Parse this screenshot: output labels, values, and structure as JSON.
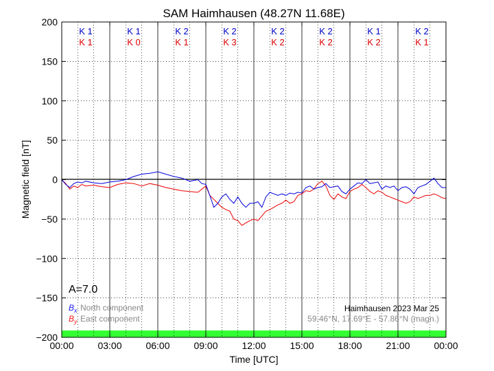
{
  "chart_data": {
    "type": "line",
    "title": "SAM Haimhausen (48.27N 11.68E)",
    "xlabel": "Time [UTC]",
    "ylabel": "Magnetic field [nT]",
    "xlim": [
      0,
      24
    ],
    "ylim": [
      -200,
      200
    ],
    "x_ticks": [
      0,
      3,
      6,
      9,
      12,
      15,
      18,
      21,
      24
    ],
    "x_tick_labels": [
      "00:00",
      "03:00",
      "06:00",
      "09:00",
      "12:00",
      "15:00",
      "18:00",
      "21:00",
      "00:00"
    ],
    "y_ticks": [
      200,
      150,
      100,
      50,
      0,
      -50,
      -100,
      -150,
      -200
    ],
    "y_tick_labels": [
      "200",
      "150",
      "100",
      "50",
      "0",
      "−50",
      "−100",
      "−150",
      "−200"
    ],
    "grid": true,
    "k_indices": {
      "blue": [
        "K 1",
        "K 1",
        "K 2",
        "K 2",
        "K 2",
        "K 2",
        "K 1",
        "K 2"
      ],
      "red": [
        "K 1",
        "K 0",
        "K 1",
        "K 3",
        "K 2",
        "K 2",
        "K 2",
        "K 1"
      ]
    },
    "a_index": "A=7.0",
    "station_info": "Haimhausen 2023 Mar 25",
    "coords_info": "59.46°N, 17.69°E - 57.86°N (magn.)",
    "legend": [
      {
        "symbol": "B",
        "sub": "x",
        "text": "North component",
        "color": "#1a1aff"
      },
      {
        "symbol": "B",
        "sub": "y",
        "text": "East component",
        "color": "#ff1a1a"
      }
    ],
    "colors": {
      "north": "#0000dd",
      "east": "#ee0000",
      "band": "#33ff33",
      "legend_text": "#888888"
    },
    "series": [
      {
        "name": "North component",
        "x": [
          0,
          0.25,
          0.5,
          0.75,
          1,
          1.25,
          1.5,
          2,
          2.5,
          3,
          3.5,
          4,
          4.5,
          5,
          5.5,
          6,
          6.5,
          7,
          7.5,
          8,
          8.5,
          8.75,
          9,
          9.25,
          9.5,
          9.75,
          10,
          10.25,
          10.5,
          10.75,
          11,
          11.25,
          11.5,
          11.75,
          12,
          12.25,
          12.5,
          12.75,
          13,
          13.25,
          13.5,
          13.75,
          14,
          14.25,
          14.5,
          14.75,
          15,
          15.25,
          15.5,
          15.75,
          16,
          16.25,
          16.5,
          16.75,
          17,
          17.25,
          17.5,
          17.75,
          18,
          18.25,
          18.5,
          18.75,
          19,
          19.25,
          19.5,
          19.75,
          20,
          20.25,
          20.5,
          20.75,
          21,
          21.25,
          21.5,
          21.75,
          22,
          22.25,
          22.5,
          22.75,
          23,
          23.25,
          23.5,
          23.75,
          24
        ],
        "values": [
          0,
          -6,
          -10,
          -5,
          -3,
          -4,
          -2,
          -4,
          -5,
          -3,
          -2,
          0,
          4,
          7,
          8,
          10,
          7,
          4,
          2,
          -2,
          0,
          -5,
          -6,
          -20,
          -35,
          -30,
          -22,
          -18,
          -25,
          -30,
          -22,
          -30,
          -35,
          -30,
          -30,
          -28,
          -35,
          -22,
          -16,
          -18,
          -20,
          -18,
          -20,
          -17,
          -18,
          -16,
          -17,
          -10,
          -8,
          -12,
          -10,
          -9,
          -5,
          -10,
          -9,
          -8,
          -15,
          -18,
          -12,
          -8,
          -4,
          -5,
          0,
          -5,
          -4,
          -3,
          -12,
          -8,
          -10,
          -8,
          -14,
          -10,
          -9,
          -12,
          -18,
          -10,
          -8,
          -6,
          -2,
          2,
          -5,
          -10,
          -10
        ]
      },
      {
        "name": "East component",
        "x": [
          0,
          0.25,
          0.5,
          0.75,
          1,
          1.25,
          1.5,
          2,
          2.5,
          3,
          3.5,
          4,
          4.5,
          5,
          5.5,
          6,
          6.5,
          7,
          7.5,
          8,
          8.5,
          8.75,
          9,
          9.25,
          9.5,
          9.75,
          10,
          10.25,
          10.5,
          10.75,
          11,
          11.25,
          11.5,
          11.75,
          12,
          12.25,
          12.5,
          12.75,
          13,
          13.25,
          13.5,
          13.75,
          14,
          14.25,
          14.5,
          14.75,
          15,
          15.25,
          15.5,
          15.75,
          16,
          16.25,
          16.5,
          16.75,
          17,
          17.25,
          17.5,
          17.75,
          18,
          18.25,
          18.5,
          18.75,
          19,
          19.25,
          19.5,
          19.75,
          20,
          20.25,
          20.5,
          20.75,
          21,
          21.25,
          21.5,
          21.75,
          22,
          22.25,
          22.5,
          22.75,
          23,
          23.25,
          23.5,
          23.75,
          24
        ],
        "values": [
          0,
          -5,
          -12,
          -8,
          -10,
          -6,
          -8,
          -7,
          -9,
          -10,
          -6,
          -4,
          -5,
          -8,
          -5,
          -7,
          -10,
          -12,
          -14,
          -15,
          -16,
          -12,
          -8,
          -20,
          -25,
          -30,
          -35,
          -38,
          -40,
          -50,
          -52,
          -58,
          -55,
          -52,
          -50,
          -52,
          -46,
          -40,
          -38,
          -35,
          -32,
          -30,
          -26,
          -30,
          -28,
          -20,
          -18,
          -14,
          -15,
          -12,
          -5,
          -2,
          -8,
          -20,
          -25,
          -18,
          -22,
          -24,
          -15,
          -12,
          -10,
          -6,
          -10,
          -15,
          -18,
          -14,
          -16,
          -20,
          -22,
          -24,
          -26,
          -28,
          -30,
          -28,
          -22,
          -24,
          -22,
          -20,
          -20,
          -18,
          -20,
          -23,
          -24
        ]
      }
    ]
  }
}
